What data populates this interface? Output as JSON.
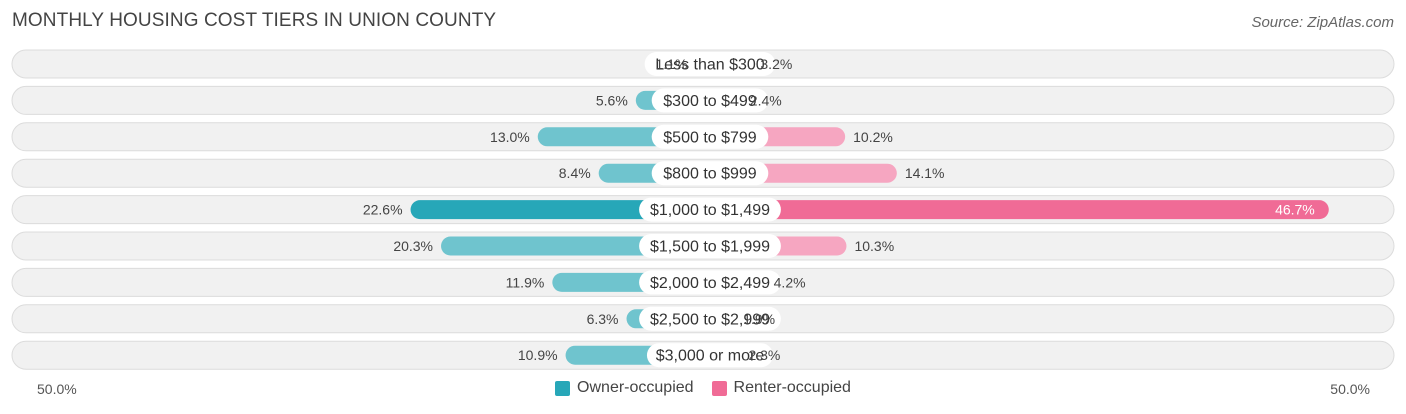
{
  "title": "MONTHLY HOUSING COST TIERS IN UNION COUNTY",
  "source": "Source: ZipAtlas.com",
  "colors": {
    "owner": "#6fc4ce",
    "owner_highlight": "#27a7b8",
    "renter": "#f6a6c1",
    "renter_highlight": "#f06b96",
    "row_background": "#f1f1f1",
    "row_border": "#dcdcdc"
  },
  "axis": {
    "left_label": "50.0%",
    "right_label": "50.0%"
  },
  "legend": {
    "owner_label": "Owner-occupied",
    "renter_label": "Renter-occupied"
  },
  "chart_data": {
    "type": "bar",
    "orientation": "horizontal-diverging",
    "xlim": [
      -50,
      50
    ],
    "categories": [
      "Less than $300",
      "$300 to $499",
      "$500 to $799",
      "$800 to $999",
      "$1,000 to $1,499",
      "$1,500 to $1,999",
      "$2,000 to $2,499",
      "$2,500 to $2,999",
      "$3,000 or more"
    ],
    "series": [
      {
        "name": "Owner-occupied",
        "values": [
          1.1,
          5.6,
          13.0,
          8.4,
          22.6,
          20.3,
          11.9,
          6.3,
          10.9
        ],
        "labels": [
          "1.1%",
          "5.6%",
          "13.0%",
          "8.4%",
          "22.6%",
          "20.3%",
          "11.9%",
          "6.3%",
          "10.9%"
        ]
      },
      {
        "name": "Renter-occupied",
        "values": [
          3.2,
          2.4,
          10.2,
          14.1,
          46.7,
          10.3,
          4.2,
          1.9,
          2.3
        ],
        "labels": [
          "3.2%",
          "2.4%",
          "10.2%",
          "14.1%",
          "46.7%",
          "10.3%",
          "4.2%",
          "1.9%",
          "2.3%"
        ]
      }
    ],
    "highlight_index": 4,
    "legend_position": "bottom-center"
  }
}
